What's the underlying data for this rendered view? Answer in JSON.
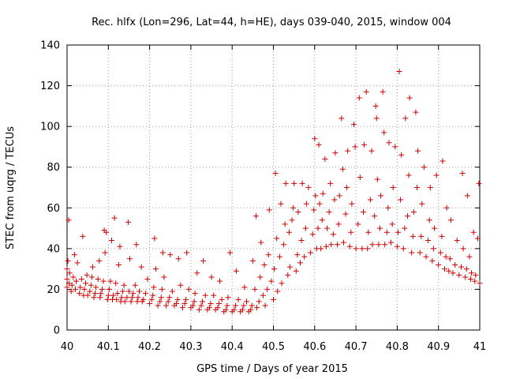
{
  "chart_data": {
    "type": "scatter",
    "title": "Rec. hlfx (Lon=296, Lat=44, h=HE), days 039-040, 2015, window 004",
    "xlabel": "GPS time / Days of year 2015",
    "ylabel": "STEC from uqrg / TECUs",
    "xlim": [
      40,
      41
    ],
    "ylim": [
      0,
      140
    ],
    "x_ticks": [
      "40",
      "40.1",
      "40.2",
      "40.3",
      "40.4",
      "40.5",
      "40.6",
      "40.7",
      "40.8",
      "40.9",
      "41"
    ],
    "y_ticks": [
      "0",
      "20",
      "40",
      "60",
      "80",
      "100",
      "120",
      "140"
    ],
    "grid": true,
    "marker": "+",
    "color": "#cc0000",
    "series": [
      {
        "points": [
          [
            40.0,
            21
          ],
          [
            40.0,
            25
          ],
          [
            40.0,
            30
          ],
          [
            40.002,
            34
          ],
          [
            40.004,
            54
          ],
          [
            40.005,
            23
          ],
          [
            40.006,
            28
          ],
          [
            40.01,
            19
          ],
          [
            40.012,
            22
          ],
          [
            40.015,
            26
          ],
          [
            40.018,
            37
          ],
          [
            40.02,
            20
          ],
          [
            40.022,
            24
          ],
          [
            40.025,
            33
          ],
          [
            40.03,
            18
          ],
          [
            40.032,
            21
          ],
          [
            40.035,
            25
          ],
          [
            40.038,
            46
          ],
          [
            40.04,
            17
          ],
          [
            40.042,
            20
          ],
          [
            40.045,
            23
          ],
          [
            40.048,
            27
          ],
          [
            40.05,
            17
          ],
          [
            40.055,
            19
          ],
          [
            40.058,
            22
          ],
          [
            40.06,
            26
          ],
          [
            40.062,
            31
          ],
          [
            40.065,
            16
          ],
          [
            40.068,
            18
          ],
          [
            40.07,
            21
          ],
          [
            40.075,
            25
          ],
          [
            40.078,
            34
          ],
          [
            40.08,
            16
          ],
          [
            40.082,
            18
          ],
          [
            40.085,
            20
          ],
          [
            40.088,
            24
          ],
          [
            40.09,
            49
          ],
          [
            40.092,
            38
          ],
          [
            40.095,
            48
          ],
          [
            40.098,
            15
          ],
          [
            40.1,
            17
          ],
          [
            40.102,
            20
          ],
          [
            40.105,
            24
          ],
          [
            40.108,
            44
          ],
          [
            40.11,
            15
          ],
          [
            40.112,
            17
          ],
          [
            40.115,
            55
          ],
          [
            40.118,
            23
          ],
          [
            40.12,
            15
          ],
          [
            40.122,
            18
          ],
          [
            40.125,
            32
          ],
          [
            40.128,
            41
          ],
          [
            40.13,
            14
          ],
          [
            40.132,
            16
          ],
          [
            40.135,
            19
          ],
          [
            40.138,
            22
          ],
          [
            40.14,
            14
          ],
          [
            40.145,
            16
          ],
          [
            40.148,
            53
          ],
          [
            40.15,
            19
          ],
          [
            40.152,
            35
          ],
          [
            40.155,
            14
          ],
          [
            40.158,
            16
          ],
          [
            40.16,
            18
          ],
          [
            40.165,
            22
          ],
          [
            40.168,
            42
          ],
          [
            40.17,
            14
          ],
          [
            40.172,
            16
          ],
          [
            40.175,
            19
          ],
          [
            40.18,
            31
          ],
          [
            40.182,
            14
          ],
          [
            40.185,
            15
          ],
          [
            40.19,
            18
          ],
          [
            40.195,
            25
          ],
          [
            40.2,
            13
          ],
          [
            40.205,
            15
          ],
          [
            40.208,
            17
          ],
          [
            40.21,
            21
          ],
          [
            40.212,
            45
          ],
          [
            40.215,
            30
          ],
          [
            40.22,
            12
          ],
          [
            40.225,
            14
          ],
          [
            40.228,
            16
          ],
          [
            40.23,
            20
          ],
          [
            40.232,
            38
          ],
          [
            40.235,
            26
          ],
          [
            40.24,
            12
          ],
          [
            40.245,
            14
          ],
          [
            40.248,
            16
          ],
          [
            40.25,
            37
          ],
          [
            40.255,
            19
          ],
          [
            40.26,
            12
          ],
          [
            40.265,
            13
          ],
          [
            40.268,
            15
          ],
          [
            40.27,
            35
          ],
          [
            40.275,
            22
          ],
          [
            40.28,
            11
          ],
          [
            40.285,
            13
          ],
          [
            40.288,
            15
          ],
          [
            40.29,
            38
          ],
          [
            40.295,
            20
          ],
          [
            40.3,
            11
          ],
          [
            40.305,
            12
          ],
          [
            40.308,
            14
          ],
          [
            40.31,
            18
          ],
          [
            40.315,
            28
          ],
          [
            40.32,
            10
          ],
          [
            40.325,
            12
          ],
          [
            40.328,
            14
          ],
          [
            40.33,
            34
          ],
          [
            40.335,
            17
          ],
          [
            40.34,
            10
          ],
          [
            40.345,
            11
          ],
          [
            40.348,
            13
          ],
          [
            40.35,
            26
          ],
          [
            40.355,
            17
          ],
          [
            40.36,
            10
          ],
          [
            40.365,
            11
          ],
          [
            40.368,
            13
          ],
          [
            40.37,
            24
          ],
          [
            40.375,
            15
          ],
          [
            40.38,
            9
          ],
          [
            40.385,
            10
          ],
          [
            40.388,
            12
          ],
          [
            40.39,
            16
          ],
          [
            40.395,
            38
          ],
          [
            40.4,
            9
          ],
          [
            40.405,
            10
          ],
          [
            40.408,
            12
          ],
          [
            40.41,
            29
          ],
          [
            40.415,
            15
          ],
          [
            40.42,
            9
          ],
          [
            40.425,
            10
          ],
          [
            40.428,
            12
          ],
          [
            40.43,
            21
          ],
          [
            40.435,
            14
          ],
          [
            40.44,
            9
          ],
          [
            40.445,
            10
          ],
          [
            40.448,
            12
          ],
          [
            40.45,
            34
          ],
          [
            40.455,
            20
          ],
          [
            40.458,
            56
          ],
          [
            40.46,
            11
          ],
          [
            40.465,
            14
          ],
          [
            40.468,
            26
          ],
          [
            40.47,
            43
          ],
          [
            40.475,
            17
          ],
          [
            40.478,
            32
          ],
          [
            40.48,
            12
          ],
          [
            40.485,
            20
          ],
          [
            40.488,
            37
          ],
          [
            40.49,
            59
          ],
          [
            40.495,
            24
          ],
          [
            40.5,
            15
          ],
          [
            40.502,
            30
          ],
          [
            40.505,
            77
          ],
          [
            40.508,
            45
          ],
          [
            40.51,
            19
          ],
          [
            40.515,
            36
          ],
          [
            40.518,
            62
          ],
          [
            40.52,
            23
          ],
          [
            40.525,
            42
          ],
          [
            40.528,
            52
          ],
          [
            40.53,
            72
          ],
          [
            40.535,
            27
          ],
          [
            40.538,
            48
          ],
          [
            40.54,
            31
          ],
          [
            40.545,
            54
          ],
          [
            40.548,
            60
          ],
          [
            40.55,
            72
          ],
          [
            40.555,
            29
          ],
          [
            40.558,
            37
          ],
          [
            40.56,
            58
          ],
          [
            40.565,
            33
          ],
          [
            40.568,
            44
          ],
          [
            40.57,
            72
          ],
          [
            40.575,
            36
          ],
          [
            40.578,
            50
          ],
          [
            40.58,
            62
          ],
          [
            40.585,
            70
          ],
          [
            40.59,
            38
          ],
          [
            40.595,
            47
          ],
          [
            40.598,
            59
          ],
          [
            40.6,
            94
          ],
          [
            40.602,
            66
          ],
          [
            40.605,
            40
          ],
          [
            40.608,
            50
          ],
          [
            40.61,
            91
          ],
          [
            40.612,
            62
          ],
          [
            40.615,
            40
          ],
          [
            40.618,
            54
          ],
          [
            40.62,
            67
          ],
          [
            40.625,
            84
          ],
          [
            40.628,
            41
          ],
          [
            40.63,
            50
          ],
          [
            40.635,
            58
          ],
          [
            40.638,
            72
          ],
          [
            40.64,
            42
          ],
          [
            40.645,
            47
          ],
          [
            40.648,
            64
          ],
          [
            40.65,
            87
          ],
          [
            40.655,
            42
          ],
          [
            40.658,
            52
          ],
          [
            40.66,
            66
          ],
          [
            40.665,
            104
          ],
          [
            40.668,
            79
          ],
          [
            40.67,
            43
          ],
          [
            40.675,
            57
          ],
          [
            40.678,
            70
          ],
          [
            40.68,
            88
          ],
          [
            40.685,
            41
          ],
          [
            40.688,
            48
          ],
          [
            40.69,
            62
          ],
          [
            40.695,
            101
          ],
          [
            40.698,
            90
          ],
          [
            40.7,
            40
          ],
          [
            40.705,
            52
          ],
          [
            40.708,
            114
          ],
          [
            40.71,
            75
          ],
          [
            40.715,
            40
          ],
          [
            40.718,
            58
          ],
          [
            40.72,
            91
          ],
          [
            40.725,
            117
          ],
          [
            40.728,
            40
          ],
          [
            40.73,
            48
          ],
          [
            40.735,
            64
          ],
          [
            40.738,
            88
          ],
          [
            40.74,
            42
          ],
          [
            40.745,
            56
          ],
          [
            40.748,
            110
          ],
          [
            40.75,
            104
          ],
          [
            40.752,
            74
          ],
          [
            40.755,
            42
          ],
          [
            40.758,
            50
          ],
          [
            40.76,
            66
          ],
          [
            40.765,
            117
          ],
          [
            40.768,
            97
          ],
          [
            40.77,
            42
          ],
          [
            40.775,
            48
          ],
          [
            40.778,
            60
          ],
          [
            40.78,
            92
          ],
          [
            40.785,
            43
          ],
          [
            40.788,
            52
          ],
          [
            40.79,
            70
          ],
          [
            40.795,
            90
          ],
          [
            40.8,
            41
          ],
          [
            40.802,
            48
          ],
          [
            40.805,
            127
          ],
          [
            40.808,
            64
          ],
          [
            40.81,
            86
          ],
          [
            40.815,
            40
          ],
          [
            40.818,
            50
          ],
          [
            40.82,
            104
          ],
          [
            40.825,
            56
          ],
          [
            40.828,
            76
          ],
          [
            40.83,
            114
          ],
          [
            40.835,
            38
          ],
          [
            40.838,
            46
          ],
          [
            40.84,
            58
          ],
          [
            40.845,
            107
          ],
          [
            40.848,
            70
          ],
          [
            40.85,
            88
          ],
          [
            40.855,
            38
          ],
          [
            40.858,
            46
          ],
          [
            40.86,
            62
          ],
          [
            40.865,
            80
          ],
          [
            40.87,
            36
          ],
          [
            40.875,
            44
          ],
          [
            40.878,
            54
          ],
          [
            40.88,
            70
          ],
          [
            40.885,
            34
          ],
          [
            40.888,
            40
          ],
          [
            40.89,
            50
          ],
          [
            40.895,
            76
          ],
          [
            40.9,
            32
          ],
          [
            40.905,
            38
          ],
          [
            40.908,
            46
          ],
          [
            40.91,
            83
          ],
          [
            40.915,
            30
          ],
          [
            40.918,
            36
          ],
          [
            40.92,
            60
          ],
          [
            40.925,
            29
          ],
          [
            40.928,
            35
          ],
          [
            40.93,
            54
          ],
          [
            40.935,
            28
          ],
          [
            40.94,
            32
          ],
          [
            40.945,
            44
          ],
          [
            40.95,
            27
          ],
          [
            40.955,
            31
          ],
          [
            40.958,
            77
          ],
          [
            40.96,
            40
          ],
          [
            40.965,
            26
          ],
          [
            40.968,
            30
          ],
          [
            40.97,
            66
          ],
          [
            40.975,
            36
          ],
          [
            40.978,
            25
          ],
          [
            40.98,
            28
          ],
          [
            40.985,
            48
          ],
          [
            40.988,
            24
          ],
          [
            40.99,
            27
          ],
          [
            40.995,
            45
          ],
          [
            40.998,
            72
          ],
          [
            41.0,
            23
          ]
        ]
      }
    ]
  }
}
